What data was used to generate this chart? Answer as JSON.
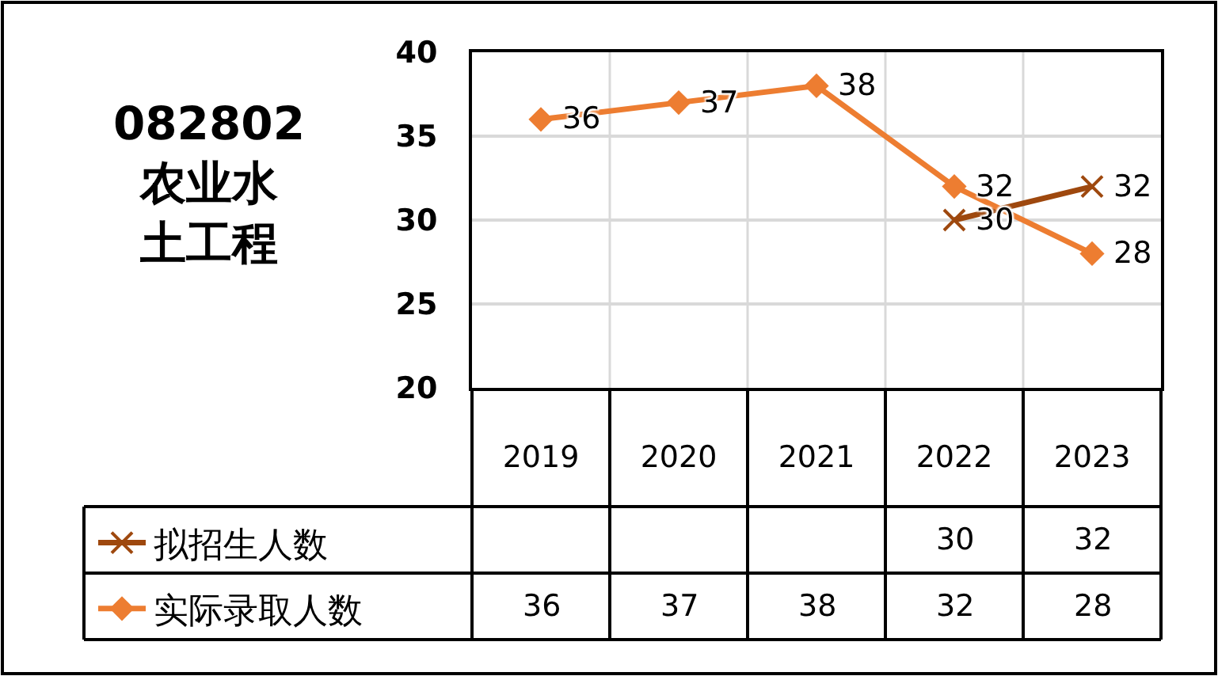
{
  "chart_data": {
    "type": "line",
    "title": "082802\n农业水土工程",
    "categories": [
      "2019",
      "2020",
      "2021",
      "2022",
      "2023"
    ],
    "series": [
      {
        "name": "拟招生人数",
        "color": "#9e480e",
        "values": [
          null,
          null,
          null,
          30,
          32
        ],
        "marker": "cross"
      },
      {
        "name": "实际录取人数",
        "color": "#ed7d31",
        "values": [
          36,
          37,
          38,
          32,
          28
        ],
        "marker": "diamond"
      }
    ],
    "ylim": [
      20,
      40
    ],
    "yticks": [
      20,
      25,
      30,
      35,
      40
    ],
    "grid": true,
    "legend": "bottom left",
    "data_labels": true,
    "annotations": [
      "30",
      "32",
      "36",
      "37",
      "38",
      "32",
      "28"
    ]
  }
}
